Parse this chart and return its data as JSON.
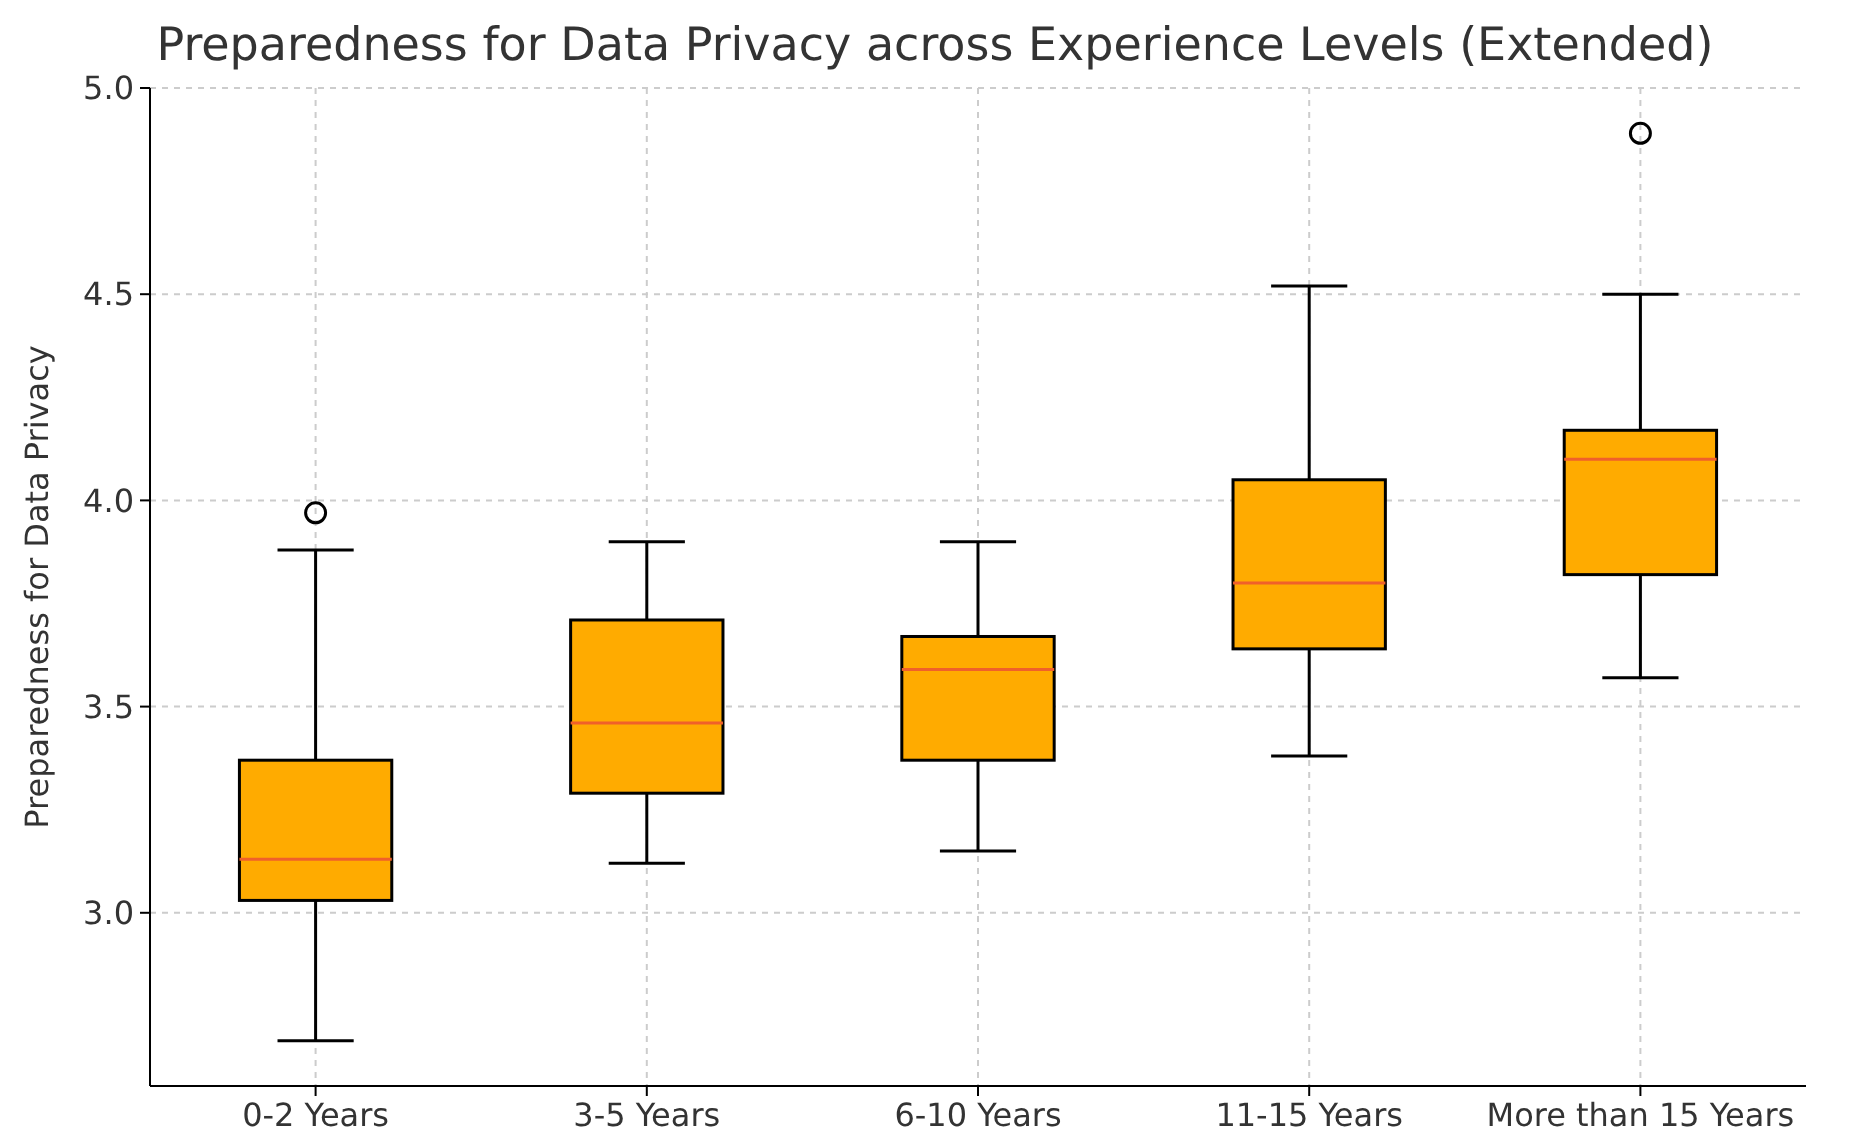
{
  "chart_data": {
    "type": "box",
    "title": "Preparedness for Data Privacy across Experience Levels (Extended)",
    "ylabel": "Preparedness for Data Privacy",
    "categories": [
      "0-2 Years",
      "3-5 Years",
      "6-10 Years",
      "11-15 Years",
      "More than 15 Years"
    ],
    "color": "#ffab00",
    "boxes": [
      {
        "low": 2.69,
        "q1": 3.03,
        "median": 3.13,
        "q3": 3.37,
        "high": 3.88,
        "outliers": [
          3.97
        ]
      },
      {
        "low": 3.12,
        "q1": 3.29,
        "median": 3.46,
        "q3": 3.71,
        "high": 3.9
      },
      {
        "low": 3.15,
        "q1": 3.37,
        "median": 3.59,
        "q3": 3.67,
        "high": 3.9
      },
      {
        "low": 3.38,
        "q1": 3.64,
        "median": 3.8,
        "q3": 4.05,
        "high": 4.52
      },
      {
        "low": 3.57,
        "q1": 3.82,
        "median": 4.1,
        "q3": 4.17,
        "high": 4.5,
        "outliers": [
          4.89
        ]
      }
    ],
    "ylim": [
      2.58,
      5.0
    ],
    "yticks": [
      {
        "value": 3,
        "label": "3.0"
      },
      {
        "value": 3.5,
        "label": "3.5"
      },
      {
        "value": 4,
        "label": "4.0"
      },
      {
        "value": 4.5,
        "label": "4.5"
      },
      {
        "value": 5,
        "label": "5.0"
      }
    ],
    "grid": true
  }
}
